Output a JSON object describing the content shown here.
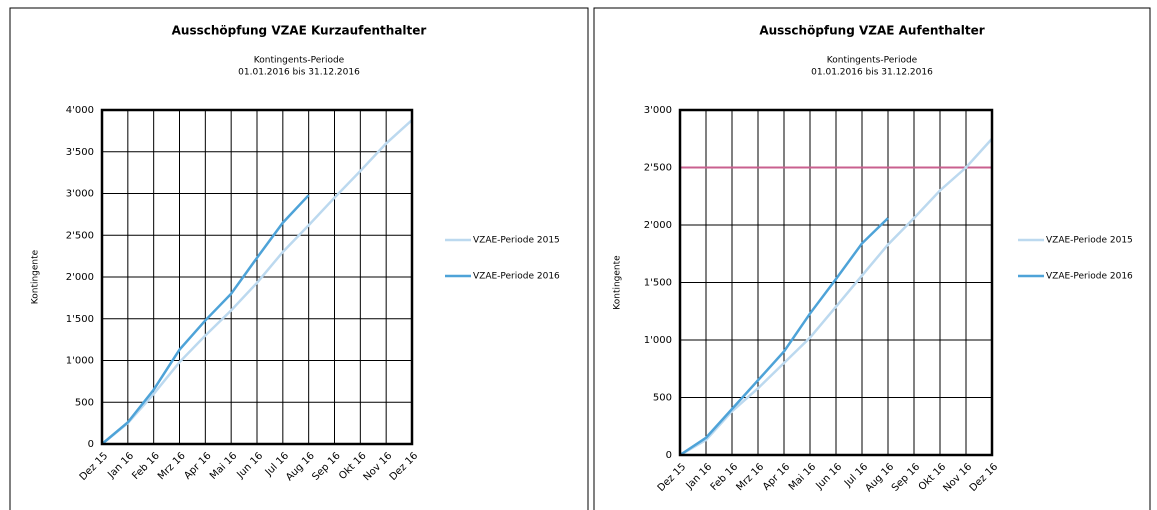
{
  "chart_data": [
    {
      "type": "line",
      "title": "Ausschöpfung VZAE Kurzaufenthalter",
      "subtitle": [
        "Kontingents-Periode",
        "01.01.2016 bis 31.12.2016"
      ],
      "y_label": "Kontingente",
      "categories": [
        "Dez 15",
        "Jan 16",
        "Feb 16",
        "Mrz 16",
        "Apr 16",
        "Mai 16",
        "Jun 16",
        "Jul 16",
        "Aug 16",
        "Sep 16",
        "Okt 16",
        "Nov 16",
        "Dez 16"
      ],
      "ylim": [
        0,
        4000
      ],
      "yticks": [
        0,
        500,
        {
          "value": 1000,
          "label": "1'000"
        },
        {
          "value": 1500,
          "label": "1'500"
        },
        {
          "value": 2000,
          "label": "2'000"
        },
        {
          "value": 2500,
          "label": "2'500"
        },
        {
          "value": 3000,
          "label": "3'000"
        },
        {
          "value": 3500,
          "label": "3'500"
        },
        {
          "value": 4000,
          "label": "4'000"
        }
      ],
      "grid": true,
      "series": [
        {
          "name": "VZAE-Periode 2015",
          "color": "#bcd9ef",
          "values": [
            0,
            250,
            600,
            980,
            1300,
            1600,
            1930,
            2300,
            2620,
            2950,
            3270,
            3600,
            3880
          ]
        },
        {
          "name": "VZAE-Periode 2016",
          "color": "#4ea3d8",
          "values": [
            0,
            260,
            650,
            1130,
            1480,
            1800,
            2230,
            2650,
            2980,
            null,
            null,
            null,
            null
          ]
        }
      ]
    },
    {
      "type": "line",
      "title": "Ausschöpfung VZAE Aufenthalter",
      "subtitle": [
        "Kontingents-Periode",
        "01.01.2016 bis 31.12.2016"
      ],
      "y_label": "Kontingente",
      "categories": [
        "Dez 15",
        "Jan 16",
        "Feb 16",
        "Mrz 16",
        "Apr 16",
        "Mai 16",
        "Jun 16",
        "Jul 16",
        "Aug 16",
        "Sep 16",
        "Okt 16",
        "Nov 16",
        "Dez 16"
      ],
      "ylim": [
        0,
        3000
      ],
      "yticks": [
        0,
        500,
        {
          "value": 1000,
          "label": "1'000"
        },
        {
          "value": 1500,
          "label": "1'500"
        },
        {
          "value": 2000,
          "label": "2'000"
        },
        {
          "value": 2500,
          "label": "2'500"
        },
        {
          "value": 3000,
          "label": "3'000"
        }
      ],
      "grid": true,
      "reference_line": {
        "value": 2500,
        "color": "#c9608f"
      },
      "series": [
        {
          "name": "VZAE-Periode 2015",
          "color": "#bcd9ef",
          "values": [
            0,
            130,
            380,
            580,
            800,
            1020,
            1290,
            1560,
            1830,
            2060,
            2300,
            2500,
            2750
          ]
        },
        {
          "name": "VZAE-Periode 2016",
          "color": "#4ea3d8",
          "values": [
            0,
            150,
            400,
            650,
            900,
            1230,
            1530,
            1840,
            2060,
            null,
            null,
            null,
            null
          ]
        }
      ]
    }
  ]
}
